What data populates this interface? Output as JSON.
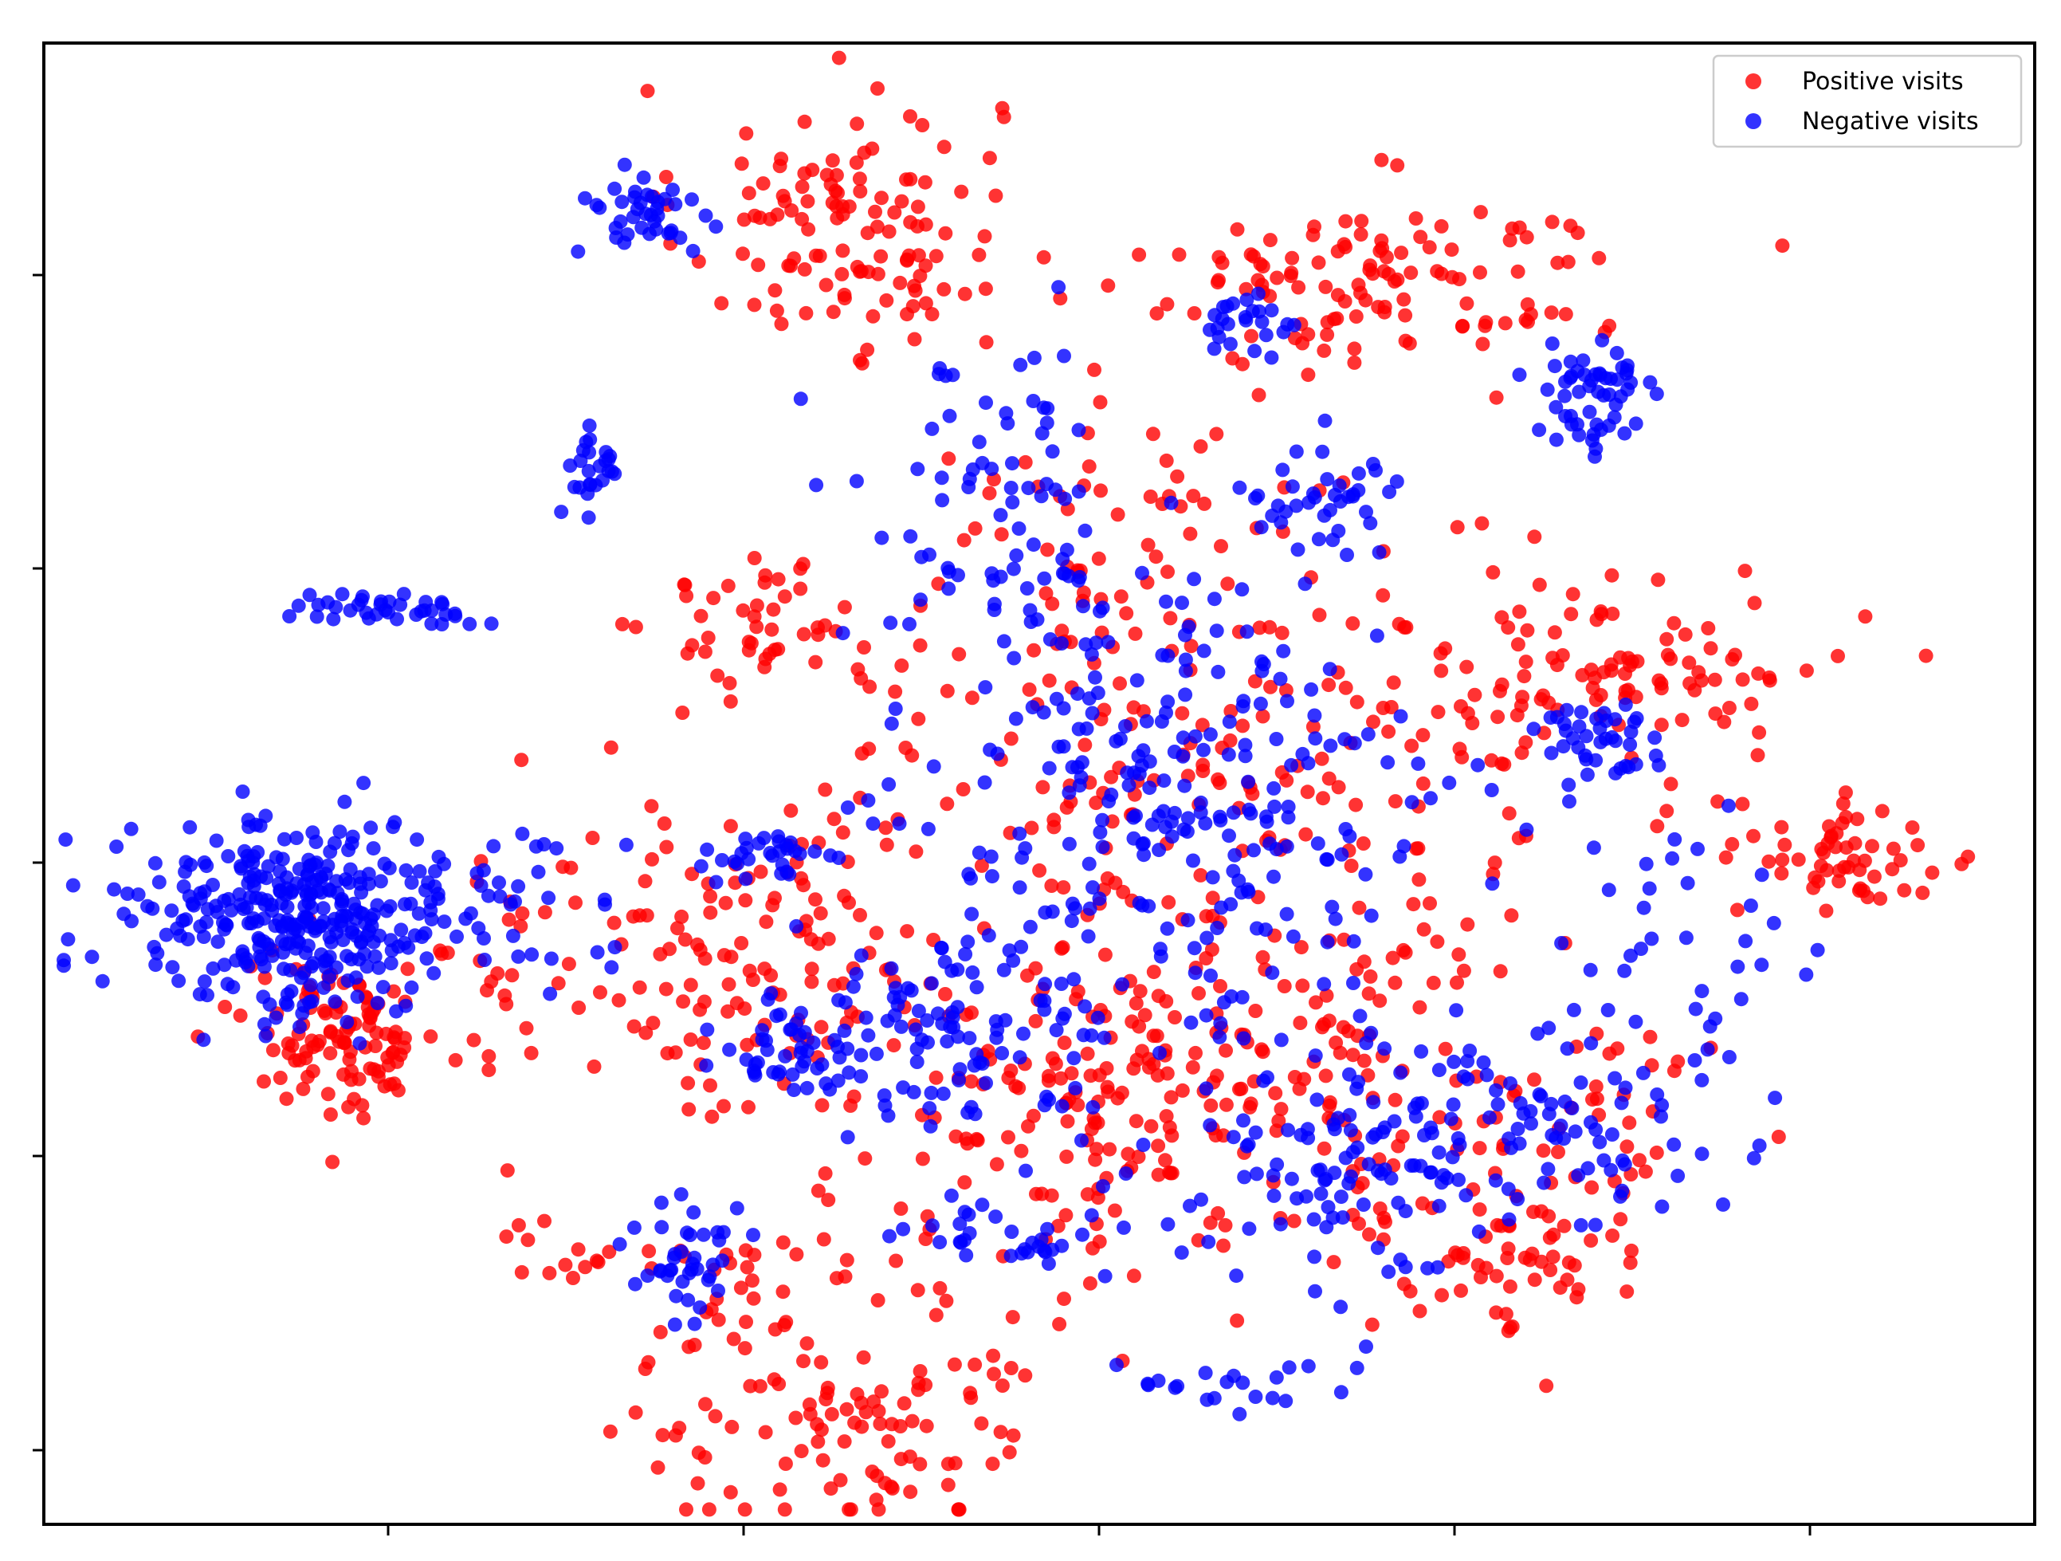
{
  "chart_data": {
    "type": "scatter",
    "title": "",
    "xlabel": "",
    "ylabel": "",
    "x_ticks": [
      "",
      "",
      "",
      "",
      ""
    ],
    "y_ticks": [
      "",
      "",
      "",
      "",
      ""
    ],
    "xlim": [
      0,
      100
    ],
    "ylim": [
      0,
      100
    ],
    "legend_position": "top-right",
    "grid": false,
    "series": [
      {
        "name": "Positive visits",
        "color": "#ff0000",
        "clusters": [
          {
            "center": [
              40.0,
              88.0
            ],
            "spread": [
              4.0,
              4.5
            ],
            "count": 120
          },
          {
            "center": [
              68.0,
              84.0
            ],
            "spread": [
              6.0,
              3.0
            ],
            "count": 110
          },
          {
            "center": [
              36.5,
              60.5
            ],
            "spread": [
              3.0,
              2.5
            ],
            "count": 50
          },
          {
            "center": [
              78.0,
              57.5
            ],
            "spread": [
              6.5,
              3.5
            ],
            "count": 120
          },
          {
            "center": [
              90.5,
              45.0
            ],
            "spread": [
              3.5,
              2.0
            ],
            "count": 60
          },
          {
            "center": [
              15.0,
              33.0
            ],
            "spread": [
              2.5,
              2.6
            ],
            "count": 110
          },
          {
            "center": [
              37.0,
              38.5
            ],
            "spread": [
              4.5,
              5.5
            ],
            "count": 120
          },
          {
            "center": [
              40.0,
              9.5
            ],
            "spread": [
              5.0,
              5.5
            ],
            "count": 140
          },
          {
            "center": [
              53.0,
              28.0
            ],
            "spread": [
              4.5,
              5.0
            ],
            "count": 120
          },
          {
            "center": [
              55.5,
              55.5
            ],
            "spread": [
              6.5,
              13.5
            ],
            "count": 220
          },
          {
            "center": [
              65.0,
              33.0
            ],
            "spread": [
              6.0,
              8.0
            ],
            "count": 140
          },
          {
            "center": [
              25.5,
              37.5
            ],
            "spread": [
              4.5,
              4.5
            ],
            "count": 45
          },
          {
            "center": [
              73.5,
              17.0
            ],
            "spread": [
              3.5,
              2.5
            ],
            "count": 55
          },
          {
            "center": [
              27.5,
              18.5
            ],
            "spread": [
              3.5,
              1.2
            ],
            "count": 18
          },
          {
            "center": [
              78.5,
              27.5
            ],
            "spread": [
              3.5,
              3.5
            ],
            "count": 40
          }
        ]
      },
      {
        "name": "Negative visits",
        "color": "#0000ff",
        "clusters": [
          {
            "center": [
              12.5,
              41.0
            ],
            "spread": [
              4.2,
              3.3
            ],
            "count": 330
          },
          {
            "center": [
              30.0,
              88.5
            ],
            "spread": [
              1.6,
              1.6
            ],
            "count": 40
          },
          {
            "center": [
              60.5,
              80.5
            ],
            "spread": [
              1.2,
              1.2
            ],
            "count": 25
          },
          {
            "center": [
              78.0,
              76.0
            ],
            "spread": [
              1.7,
              2.3
            ],
            "count": 55
          },
          {
            "center": [
              27.5,
              71.0
            ],
            "spread": [
              0.8,
              1.5
            ],
            "count": 25
          },
          {
            "center": [
              15.0,
              62.0
            ],
            "spread": [
              1.6,
              0.6
            ],
            "count": 20
          },
          {
            "center": [
              18.5,
              61.5
            ],
            "spread": [
              1.5,
              0.6
            ],
            "count": 18
          },
          {
            "center": [
              47.5,
              68.0
            ],
            "spread": [
              3.5,
              6.0
            ],
            "count": 80
          },
          {
            "center": [
              57.5,
              48.0
            ],
            "spread": [
              6.5,
              7.5
            ],
            "count": 250
          },
          {
            "center": [
              36.5,
              45.5
            ],
            "spread": [
              1.5,
              1.0
            ],
            "count": 30
          },
          {
            "center": [
              45.0,
              33.0
            ],
            "spread": [
              3.5,
              2.8
            ],
            "count": 90
          },
          {
            "center": [
              37.5,
              32.0
            ],
            "spread": [
              2.0,
              2.0
            ],
            "count": 45
          },
          {
            "center": [
              67.0,
              25.5
            ],
            "spread": [
              4.5,
              4.5
            ],
            "count": 130
          },
          {
            "center": [
              32.0,
              18.0
            ],
            "spread": [
              1.5,
              2.0
            ],
            "count": 40
          },
          {
            "center": [
              77.0,
              27.5
            ],
            "spread": [
              3.5,
              4.0
            ],
            "count": 60
          },
          {
            "center": [
              78.0,
              52.5
            ],
            "spread": [
              1.5,
              2.0
            ],
            "count": 40
          },
          {
            "center": [
              64.0,
              69.0
            ],
            "spread": [
              2.3,
              2.0
            ],
            "count": 40
          },
          {
            "center": [
              59.5,
              10.0
            ],
            "spread": [
              3.0,
              1.0
            ],
            "count": 22
          },
          {
            "center": [
              49.5,
              20.0
            ],
            "spread": [
              3.0,
              1.5
            ],
            "count": 35
          },
          {
            "center": [
              22.0,
              41.0
            ],
            "spread": [
              5.0,
              3.5
            ],
            "count": 40
          },
          {
            "center": [
              82.0,
              40.5
            ],
            "spread": [
              3.5,
              5.0
            ],
            "count": 35
          }
        ]
      }
    ],
    "legend": [
      "Positive visits",
      "Negative visits"
    ]
  }
}
